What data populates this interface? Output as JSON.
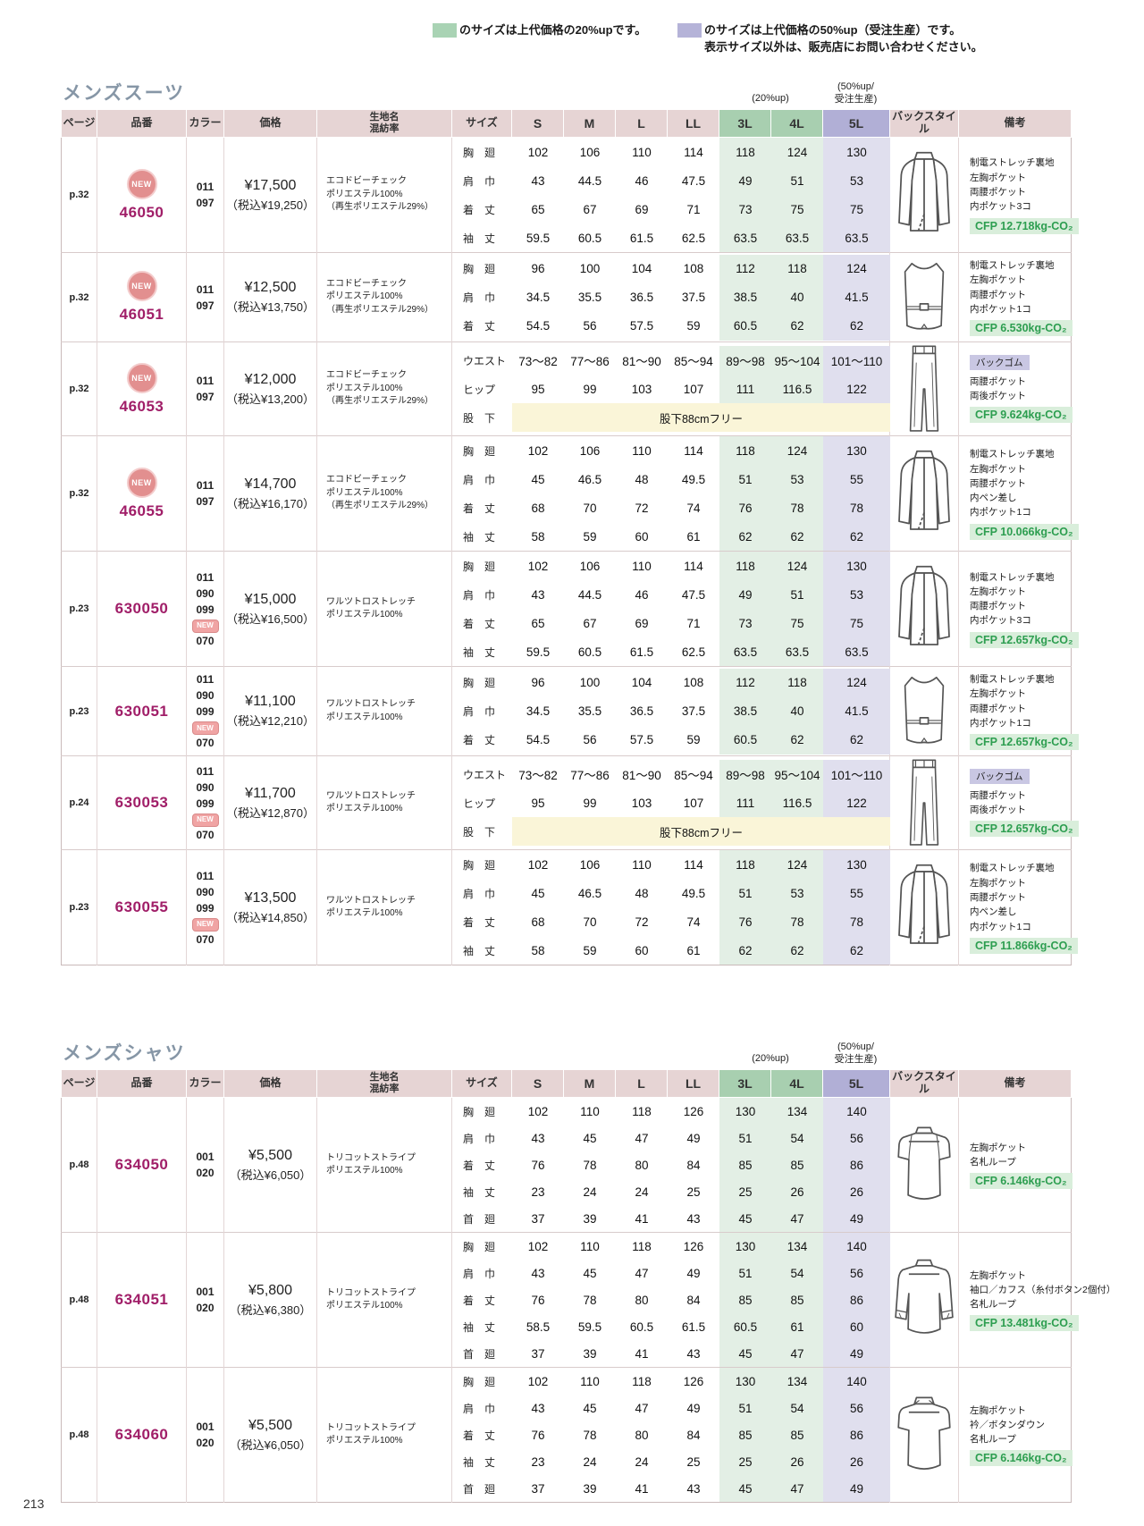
{
  "page_number": "213",
  "legend": {
    "green_text": "のサイズは上代価格の20%upです。",
    "purple_text": "のサイズは上代価格の50%up（受注生産）です。",
    "note": "表示サイズ以外は、販売店にお問い合わせください。"
  },
  "colors": {
    "swatch_green": "#a9d3b4",
    "swatch_purple": "#b5b3d8",
    "header_pink": "#e6d4d4",
    "header_green": "#a8cfb0",
    "header_purple": "#b1afd6",
    "body_green": "#e3efe5",
    "body_purple": "#e0dfee",
    "inseam_yellow": "#faf5d8",
    "cfp_text": "#2d9e50",
    "cfp_bg": "#d9eedb",
    "code_magenta": "#a01e68",
    "new_badge": "#e28f8f",
    "title_gray": "#8696a6",
    "remark_badge_purple": "#c9c7e3"
  },
  "up_labels": {
    "up20": "(20%up)",
    "up50_line1": "(50%up/",
    "up50_line2": "受注生産)"
  },
  "table_headers": [
    "ページ",
    "品番",
    "カラー",
    "価格",
    "生地名\n混紡率",
    "サイズ",
    "S",
    "M",
    "L",
    "LL",
    "3L",
    "4L",
    "5L",
    "バックスタイル",
    "備考"
  ],
  "sections": [
    {
      "title": "メンズスーツ",
      "products": [
        {
          "page": "p.32",
          "is_new": true,
          "code": "46050",
          "color_codes": [
            "011",
            "097"
          ],
          "new_color": null,
          "price": "¥17,500",
          "price_tax": "（税込¥19,250）",
          "fabric": [
            "エコドビーチェック",
            "ポリエステル100%",
            "（再生ポリエステル29%）"
          ],
          "illustration": "jacket-back",
          "measurements": [
            {
              "label": "胸　廻",
              "values": [
                "102",
                "106",
                "110",
                "114",
                "118",
                "124",
                "130"
              ]
            },
            {
              "label": "肩　巾",
              "values": [
                "43",
                "44.5",
                "46",
                "47.5",
                "49",
                "51",
                "53"
              ]
            },
            {
              "label": "着　丈",
              "values": [
                "65",
                "67",
                "69",
                "71",
                "73",
                "75",
                "75"
              ]
            },
            {
              "label": "袖　丈",
              "values": [
                "59.5",
                "60.5",
                "61.5",
                "62.5",
                "63.5",
                "63.5",
                "63.5"
              ]
            }
          ],
          "remark_badge": null,
          "remarks": [
            "制電ストレッチ裏地",
            "左胸ポケット",
            "両腰ポケット",
            "内ポケット3コ"
          ],
          "cfp": "CFP 12.718kg-CO₂"
        },
        {
          "page": "p.32",
          "is_new": true,
          "code": "46051",
          "color_codes": [
            "011",
            "097"
          ],
          "new_color": null,
          "price": "¥12,500",
          "price_tax": "（税込¥13,750）",
          "fabric": [
            "エコドビーチェック",
            "ポリエステル100%",
            "（再生ポリエステル29%）"
          ],
          "illustration": "vest-back",
          "measurements": [
            {
              "label": "胸　廻",
              "values": [
                "96",
                "100",
                "104",
                "108",
                "112",
                "118",
                "124"
              ]
            },
            {
              "label": "肩　巾",
              "values": [
                "34.5",
                "35.5",
                "36.5",
                "37.5",
                "38.5",
                "40",
                "41.5"
              ]
            },
            {
              "label": "着　丈",
              "values": [
                "54.5",
                "56",
                "57.5",
                "59",
                "60.5",
                "62",
                "62"
              ]
            }
          ],
          "remark_badge": null,
          "remarks": [
            "制電ストレッチ裏地",
            "左胸ポケット",
            "両腰ポケット",
            "内ポケット1コ"
          ],
          "cfp": "CFP 6.530kg-CO₂"
        },
        {
          "page": "p.32",
          "is_new": true,
          "code": "46053",
          "color_codes": [
            "011",
            "097"
          ],
          "new_color": null,
          "price": "¥12,000",
          "price_tax": "（税込¥13,200）",
          "fabric": [
            "エコドビーチェック",
            "ポリエステル100%",
            "（再生ポリエステル29%）"
          ],
          "illustration": "pants-back",
          "measurements": [
            {
              "label": "ウエスト",
              "values": [
                "73～82",
                "77～86",
                "81～90",
                "85～94",
                "89～98",
                "95～104",
                "101～110"
              ]
            },
            {
              "label": "ヒップ",
              "values": [
                "95",
                "99",
                "103",
                "107",
                "111",
                "116.5",
                "122"
              ]
            },
            {
              "label": "股　下",
              "span_text": "股下88cmフリー"
            }
          ],
          "remark_badge": "バックゴム",
          "remarks": [
            "両腰ポケット",
            "両後ポケット"
          ],
          "cfp": "CFP 9.624kg-CO₂"
        },
        {
          "page": "p.32",
          "is_new": true,
          "code": "46055",
          "color_codes": [
            "011",
            "097"
          ],
          "new_color": null,
          "price": "¥14,700",
          "price_tax": "（税込¥16,170）",
          "fabric": [
            "エコドビーチェック",
            "ポリエステル100%",
            "（再生ポリエステル29%）"
          ],
          "illustration": "jacket-back",
          "measurements": [
            {
              "label": "胸　廻",
              "values": [
                "102",
                "106",
                "110",
                "114",
                "118",
                "124",
                "130"
              ]
            },
            {
              "label": "肩　巾",
              "values": [
                "45",
                "46.5",
                "48",
                "49.5",
                "51",
                "53",
                "55"
              ]
            },
            {
              "label": "着　丈",
              "values": [
                "68",
                "70",
                "72",
                "74",
                "76",
                "78",
                "78"
              ]
            },
            {
              "label": "袖　丈",
              "values": [
                "58",
                "59",
                "60",
                "61",
                "62",
                "62",
                "62"
              ]
            }
          ],
          "remark_badge": null,
          "remarks": [
            "制電ストレッチ裏地",
            "左胸ポケット",
            "両腰ポケット",
            "内ペン差し",
            "内ポケット1コ"
          ],
          "cfp": "CFP 10.066kg-CO₂"
        },
        {
          "page": "p.23",
          "is_new": false,
          "code": "630050",
          "color_codes": [
            "011",
            "090",
            "099"
          ],
          "new_color": "070",
          "price": "¥15,000",
          "price_tax": "（税込¥16,500）",
          "fabric": [
            "ワルツトロストレッチ",
            "ポリエステル100%"
          ],
          "illustration": "jacket-back",
          "measurements": [
            {
              "label": "胸　廻",
              "values": [
                "102",
                "106",
                "110",
                "114",
                "118",
                "124",
                "130"
              ]
            },
            {
              "label": "肩　巾",
              "values": [
                "43",
                "44.5",
                "46",
                "47.5",
                "49",
                "51",
                "53"
              ]
            },
            {
              "label": "着　丈",
              "values": [
                "65",
                "67",
                "69",
                "71",
                "73",
                "75",
                "75"
              ]
            },
            {
              "label": "袖　丈",
              "values": [
                "59.5",
                "60.5",
                "61.5",
                "62.5",
                "63.5",
                "63.5",
                "63.5"
              ]
            }
          ],
          "remark_badge": null,
          "remarks": [
            "制電ストレッチ裏地",
            "左胸ポケット",
            "両腰ポケット",
            "内ポケット3コ"
          ],
          "cfp": "CFP 12.657kg-CO₂"
        },
        {
          "page": "p.23",
          "is_new": false,
          "code": "630051",
          "color_codes": [
            "011",
            "090",
            "099"
          ],
          "new_color": "070",
          "price": "¥11,100",
          "price_tax": "（税込¥12,210）",
          "fabric": [
            "ワルツトロストレッチ",
            "ポリエステル100%"
          ],
          "illustration": "vest-back",
          "measurements": [
            {
              "label": "胸　廻",
              "values": [
                "96",
                "100",
                "104",
                "108",
                "112",
                "118",
                "124"
              ]
            },
            {
              "label": "肩　巾",
              "values": [
                "34.5",
                "35.5",
                "36.5",
                "37.5",
                "38.5",
                "40",
                "41.5"
              ]
            },
            {
              "label": "着　丈",
              "values": [
                "54.5",
                "56",
                "57.5",
                "59",
                "60.5",
                "62",
                "62"
              ]
            }
          ],
          "remark_badge": null,
          "remarks": [
            "制電ストレッチ裏地",
            "左胸ポケット",
            "両腰ポケット",
            "内ポケット1コ"
          ],
          "cfp": "CFP 12.657kg-CO₂"
        },
        {
          "page": "p.24",
          "is_new": false,
          "code": "630053",
          "color_codes": [
            "011",
            "090",
            "099"
          ],
          "new_color": "070",
          "price": "¥11,700",
          "price_tax": "（税込¥12,870）",
          "fabric": [
            "ワルツトロストレッチ",
            "ポリエステル100%"
          ],
          "illustration": "pants-back",
          "measurements": [
            {
              "label": "ウエスト",
              "values": [
                "73～82",
                "77～86",
                "81～90",
                "85～94",
                "89～98",
                "95～104",
                "101～110"
              ]
            },
            {
              "label": "ヒップ",
              "values": [
                "95",
                "99",
                "103",
                "107",
                "111",
                "116.5",
                "122"
              ]
            },
            {
              "label": "股　下",
              "span_text": "股下88cmフリー"
            }
          ],
          "remark_badge": "バックゴム",
          "remarks": [
            "両腰ポケット",
            "両後ポケット"
          ],
          "cfp": "CFP 12.657kg-CO₂"
        },
        {
          "page": "p.23",
          "is_new": false,
          "code": "630055",
          "color_codes": [
            "011",
            "090",
            "099"
          ],
          "new_color": "070",
          "price": "¥13,500",
          "price_tax": "（税込¥14,850）",
          "fabric": [
            "ワルツトロストレッチ",
            "ポリエステル100%"
          ],
          "illustration": "jacket-back",
          "measurements": [
            {
              "label": "胸　廻",
              "values": [
                "102",
                "106",
                "110",
                "114",
                "118",
                "124",
                "130"
              ]
            },
            {
              "label": "肩　巾",
              "values": [
                "45",
                "46.5",
                "48",
                "49.5",
                "51",
                "53",
                "55"
              ]
            },
            {
              "label": "着　丈",
              "values": [
                "68",
                "70",
                "72",
                "74",
                "76",
                "78",
                "78"
              ]
            },
            {
              "label": "袖　丈",
              "values": [
                "58",
                "59",
                "60",
                "61",
                "62",
                "62",
                "62"
              ]
            }
          ],
          "remark_badge": null,
          "remarks": [
            "制電ストレッチ裏地",
            "左胸ポケット",
            "両腰ポケット",
            "内ペン差し",
            "内ポケット1コ"
          ],
          "cfp": "CFP 11.866kg-CO₂"
        }
      ]
    },
    {
      "title": "メンズシャツ",
      "products": [
        {
          "page": "p.48",
          "is_new": false,
          "code": "634050",
          "color_codes": [
            "001",
            "020"
          ],
          "new_color": null,
          "price": "¥5,500",
          "price_tax": "（税込¥6,050）",
          "fabric": [
            "トリコットストライプ",
            "ポリエステル100%"
          ],
          "illustration": "shirt-short-back",
          "measurements": [
            {
              "label": "胸　廻",
              "values": [
                "102",
                "110",
                "118",
                "126",
                "130",
                "134",
                "140"
              ]
            },
            {
              "label": "肩　巾",
              "values": [
                "43",
                "45",
                "47",
                "49",
                "51",
                "54",
                "56"
              ]
            },
            {
              "label": "着　丈",
              "values": [
                "76",
                "78",
                "80",
                "84",
                "85",
                "85",
                "86"
              ]
            },
            {
              "label": "袖　丈",
              "values": [
                "23",
                "24",
                "24",
                "25",
                "25",
                "26",
                "26"
              ]
            },
            {
              "label": "首　廻",
              "values": [
                "37",
                "39",
                "41",
                "43",
                "45",
                "47",
                "49"
              ]
            }
          ],
          "remark_badge": null,
          "remarks": [
            "左胸ポケット",
            "名札ループ"
          ],
          "cfp": "CFP 6.146kg-CO₂"
        },
        {
          "page": "p.48",
          "is_new": false,
          "code": "634051",
          "color_codes": [
            "001",
            "020"
          ],
          "new_color": null,
          "price": "¥5,800",
          "price_tax": "（税込¥6,380）",
          "fabric": [
            "トリコットストライプ",
            "ポリエステル100%"
          ],
          "illustration": "shirt-long-back",
          "measurements": [
            {
              "label": "胸　廻",
              "values": [
                "102",
                "110",
                "118",
                "126",
                "130",
                "134",
                "140"
              ]
            },
            {
              "label": "肩　巾",
              "values": [
                "43",
                "45",
                "47",
                "49",
                "51",
                "54",
                "56"
              ]
            },
            {
              "label": "着　丈",
              "values": [
                "76",
                "78",
                "80",
                "84",
                "85",
                "85",
                "86"
              ]
            },
            {
              "label": "袖　丈",
              "values": [
                "58.5",
                "59.5",
                "60.5",
                "61.5",
                "60.5",
                "61",
                "60"
              ]
            },
            {
              "label": "首　廻",
              "values": [
                "37",
                "39",
                "41",
                "43",
                "45",
                "47",
                "49"
              ]
            }
          ],
          "remark_badge": null,
          "remarks": [
            "左胸ポケット",
            "袖口／カフス（糸付ボタン2個付）",
            "名札ループ"
          ],
          "cfp": "CFP 13.481kg-CO₂"
        },
        {
          "page": "p.48",
          "is_new": false,
          "code": "634060",
          "color_codes": [
            "001",
            "020"
          ],
          "new_color": null,
          "price": "¥5,500",
          "price_tax": "（税込¥6,050）",
          "fabric": [
            "トリコットストライプ",
            "ポリエステル100%"
          ],
          "illustration": "shirt-buttondown-back",
          "measurements": [
            {
              "label": "胸　廻",
              "values": [
                "102",
                "110",
                "118",
                "126",
                "130",
                "134",
                "140"
              ]
            },
            {
              "label": "肩　巾",
              "values": [
                "43",
                "45",
                "47",
                "49",
                "51",
                "54",
                "56"
              ]
            },
            {
              "label": "着　丈",
              "values": [
                "76",
                "78",
                "80",
                "84",
                "85",
                "85",
                "86"
              ]
            },
            {
              "label": "袖　丈",
              "values": [
                "23",
                "24",
                "24",
                "25",
                "25",
                "26",
                "26"
              ]
            },
            {
              "label": "首　廻",
              "values": [
                "37",
                "39",
                "41",
                "43",
                "45",
                "47",
                "49"
              ]
            }
          ],
          "remark_badge": null,
          "remarks": [
            "左胸ポケット",
            "衿／ボタンダウン",
            "名札ループ"
          ],
          "cfp": "CFP 6.146kg-CO₂"
        }
      ]
    }
  ]
}
